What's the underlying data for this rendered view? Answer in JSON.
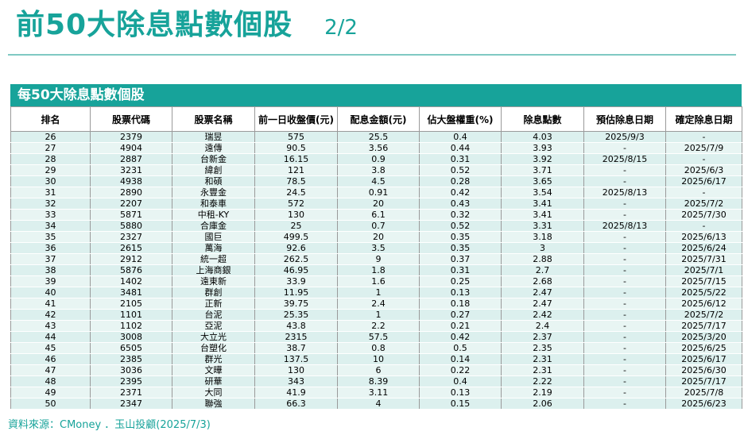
{
  "title": "前50大除息點數個股",
  "page_indicator": "2/2",
  "panel_title": "每50大除息點數個股",
  "columns": [
    "排名",
    "股票代碼",
    "股票名稱",
    "前一日收盤價(元)",
    "配息金額(元)",
    "佔大盤權重(%)",
    "除息點數",
    "預估除息日期",
    "確定除息日期"
  ],
  "rows": [
    [
      "26",
      "2379",
      "瑞昱",
      "575",
      "25.5",
      "0.4",
      "4.03",
      "2025/9/3",
      "-"
    ],
    [
      "27",
      "4904",
      "遠傳",
      "90.5",
      "3.56",
      "0.44",
      "3.93",
      "-",
      "2025/7/9"
    ],
    [
      "28",
      "2887",
      "台新金",
      "16.15",
      "0.9",
      "0.31",
      "3.92",
      "2025/8/15",
      "-"
    ],
    [
      "29",
      "3231",
      "緯創",
      "121",
      "3.8",
      "0.52",
      "3.71",
      "-",
      "2025/6/3"
    ],
    [
      "30",
      "4938",
      "和碩",
      "78.5",
      "4.5",
      "0.28",
      "3.65",
      "-",
      "2025/6/17"
    ],
    [
      "31",
      "2890",
      "永豐金",
      "24.5",
      "0.91",
      "0.42",
      "3.54",
      "2025/8/13",
      "-"
    ],
    [
      "32",
      "2207",
      "和泰車",
      "572",
      "20",
      "0.43",
      "3.41",
      "-",
      "2025/7/2"
    ],
    [
      "33",
      "5871",
      "中租-KY",
      "130",
      "6.1",
      "0.32",
      "3.41",
      "-",
      "2025/7/30"
    ],
    [
      "34",
      "5880",
      "合庫金",
      "25",
      "0.7",
      "0.52",
      "3.31",
      "2025/8/13",
      "-"
    ],
    [
      "35",
      "2327",
      "國巨",
      "499.5",
      "20",
      "0.35",
      "3.18",
      "-",
      "2025/6/13"
    ],
    [
      "36",
      "2615",
      "萬海",
      "92.6",
      "3.5",
      "0.35",
      "3",
      "-",
      "2025/6/24"
    ],
    [
      "37",
      "2912",
      "統一超",
      "262.5",
      "9",
      "0.37",
      "2.88",
      "-",
      "2025/7/31"
    ],
    [
      "38",
      "5876",
      "上海商銀",
      "46.95",
      "1.8",
      "0.31",
      "2.7",
      "-",
      "2025/7/1"
    ],
    [
      "39",
      "1402",
      "遠東新",
      "33.9",
      "1.6",
      "0.25",
      "2.68",
      "-",
      "2025/7/15"
    ],
    [
      "40",
      "3481",
      "群創",
      "11.95",
      "1",
      "0.13",
      "2.47",
      "-",
      "2025/5/22"
    ],
    [
      "41",
      "2105",
      "正新",
      "39.75",
      "2.4",
      "0.18",
      "2.47",
      "-",
      "2025/6/12"
    ],
    [
      "42",
      "1101",
      "台泥",
      "25.35",
      "1",
      "0.27",
      "2.42",
      "-",
      "2025/7/2"
    ],
    [
      "43",
      "1102",
      "亞泥",
      "43.8",
      "2.2",
      "0.21",
      "2.4",
      "-",
      "2025/7/17"
    ],
    [
      "44",
      "3008",
      "大立光",
      "2315",
      "57.5",
      "0.42",
      "2.37",
      "-",
      "2025/3/20"
    ],
    [
      "45",
      "6505",
      "台塑化",
      "38.7",
      "0.8",
      "0.5",
      "2.35",
      "-",
      "2025/6/25"
    ],
    [
      "46",
      "2385",
      "群光",
      "137.5",
      "10",
      "0.14",
      "2.31",
      "-",
      "2025/6/17"
    ],
    [
      "47",
      "3036",
      "文曄",
      "130",
      "6",
      "0.22",
      "2.31",
      "-",
      "2025/6/30"
    ],
    [
      "48",
      "2395",
      "研華",
      "343",
      "8.39",
      "0.4",
      "2.22",
      "-",
      "2025/7/17"
    ],
    [
      "49",
      "2371",
      "大同",
      "41.9",
      "3.11",
      "0.13",
      "2.19",
      "-",
      "2025/7/8"
    ],
    [
      "50",
      "2347",
      "聯強",
      "66.3",
      "4",
      "0.15",
      "2.06",
      "-",
      "2025/6/23"
    ]
  ],
  "source_note": "資料來源：CMoney ．玉山投顧(2025/7/3)"
}
